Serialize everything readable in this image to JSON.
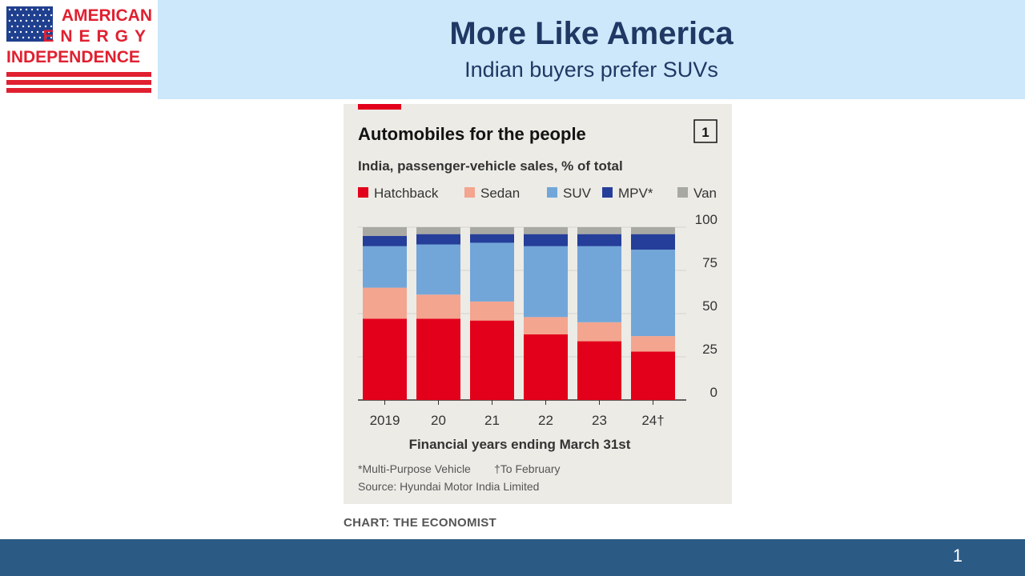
{
  "slide": {
    "title": "More Like America",
    "subtitle": "Indian buyers prefer SUVs",
    "page_number": "1",
    "credit": "CHART: THE ECONOMIST"
  },
  "logo": {
    "line1": "AMERICAN",
    "line2": "ENERGY",
    "line3": "INDEPENDENCE",
    "colors": {
      "red": "#e02030",
      "blue": "#1f3f8f"
    }
  },
  "chart_data": {
    "type": "bar",
    "stacked": true,
    "title": "Automobiles for the people",
    "badge": "1",
    "subtitle": "India, passenger-vehicle sales, % of total",
    "categories": [
      "2019",
      "20",
      "21",
      "22",
      "23",
      "24†"
    ],
    "xlabel": "Financial years ending March 31st",
    "ylim": [
      0,
      100
    ],
    "yticks": [
      0,
      25,
      50,
      75,
      100
    ],
    "legend_position": "top",
    "series": [
      {
        "name": "Hatchback",
        "color": "#e3001b",
        "values": [
          47,
          47,
          46,
          38,
          34,
          28
        ]
      },
      {
        "name": "Sedan",
        "color": "#f4a58f",
        "values": [
          18,
          14,
          11,
          10,
          11,
          9
        ]
      },
      {
        "name": "SUV",
        "color": "#72a6d9",
        "values": [
          24,
          29,
          34,
          41,
          44,
          50
        ]
      },
      {
        "name": "MPV*",
        "color": "#253e99",
        "values": [
          6,
          6,
          5,
          7,
          7,
          9
        ]
      },
      {
        "name": "Van",
        "color": "#a9a9a4",
        "values": [
          5,
          4,
          4,
          4,
          4,
          4
        ]
      }
    ],
    "footnotes": [
      "*Multi-Purpose Vehicle",
      "†To February"
    ],
    "source": "Source: Hyundai Motor India Limited"
  }
}
